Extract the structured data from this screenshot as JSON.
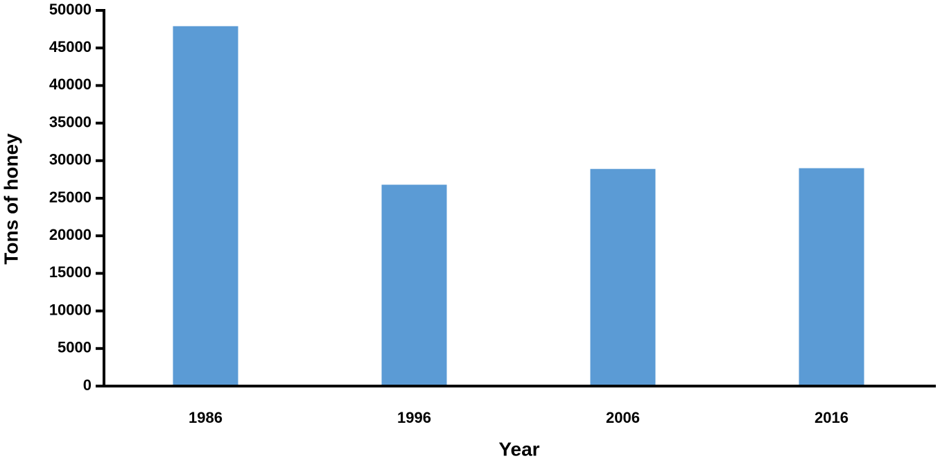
{
  "chart_data": {
    "type": "bar",
    "x_label": "Year",
    "y_label": "Tons of honey",
    "categories": [
      "1986",
      "1996",
      "2006",
      "2016"
    ],
    "values": [
      47900,
      26800,
      28900,
      29000
    ],
    "color": "#5b9bd5",
    "ylim": [
      0,
      50000
    ],
    "yticks": [
      0,
      5000,
      10000,
      15000,
      20000,
      25000,
      30000,
      35000,
      40000,
      45000,
      50000
    ],
    "grid": false
  }
}
